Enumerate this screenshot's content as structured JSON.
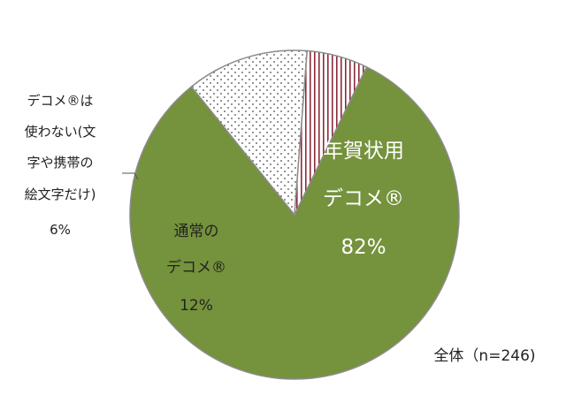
{
  "chart_data": {
    "type": "pie",
    "note_total": "全体（n=246)",
    "slices": [
      {
        "label_lines": [
          "年賀状用",
          "デコメ®"
        ],
        "value_text": "82%",
        "value": 82,
        "color": "#75923c",
        "pattern": "solid"
      },
      {
        "label_lines": [
          "通常の",
          "デコメ®"
        ],
        "value_text": "12%",
        "value": 12,
        "color": "#ffffff",
        "pattern": "dots"
      },
      {
        "label_lines": [
          "デコメ®は",
          "使わない(文",
          "字や携帯の",
          "絵文字だけ)"
        ],
        "value_text": "6%",
        "value": 6,
        "color": "#ffffff",
        "pattern": "vertical-lines"
      }
    ]
  }
}
